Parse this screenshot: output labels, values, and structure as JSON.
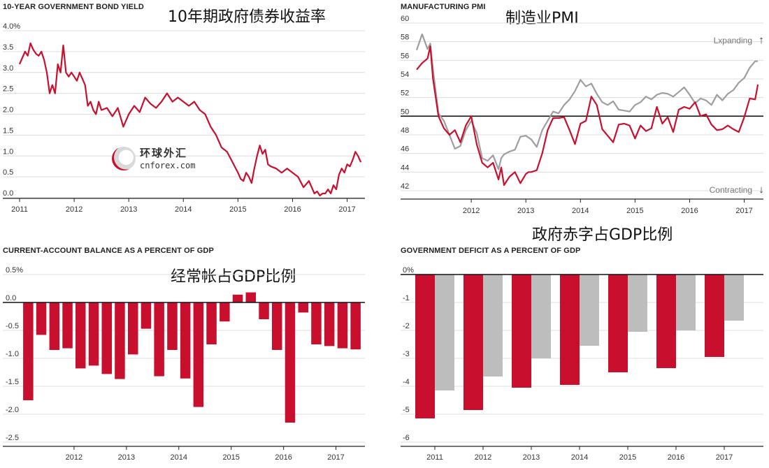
{
  "watermark": {
    "cn": "环球外汇",
    "en": "cnforex.com"
  },
  "chart_data": [
    {
      "type": "line",
      "title": "10-YEAR GOVERNMENT BOND YIELD",
      "title_cn": "10年期政府债券收益率",
      "y_tick_labels": [
        "4.0%",
        "3.5",
        "3.0",
        "2.5",
        "2.0",
        "1.5",
        "1.0",
        "0.5",
        "0.0"
      ],
      "x_tick_labels": [
        "2011",
        "2012",
        "2013",
        "2014",
        "2015",
        "2016",
        "2017"
      ],
      "ylim": [
        0,
        4
      ],
      "xlim": [
        2011.0,
        2017.3
      ],
      "grid": true,
      "series": [
        {
          "color": "#c8102e",
          "x": [
            2011.0,
            2011.05,
            2011.1,
            2011.15,
            2011.2,
            2011.25,
            2011.3,
            2011.35,
            2011.4,
            2011.45,
            2011.5,
            2011.55,
            2011.6,
            2011.65,
            2011.7,
            2011.75,
            2011.8,
            2011.85,
            2011.9,
            2011.95,
            2012.0,
            2012.05,
            2012.1,
            2012.15,
            2012.2,
            2012.25,
            2012.3,
            2012.35,
            2012.4,
            2012.45,
            2012.5,
            2012.6,
            2012.7,
            2012.8,
            2012.9,
            2013.0,
            2013.1,
            2013.2,
            2013.3,
            2013.4,
            2013.5,
            2013.6,
            2013.7,
            2013.8,
            2013.9,
            2014.0,
            2014.1,
            2014.2,
            2014.3,
            2014.4,
            2014.5,
            2014.6,
            2014.7,
            2014.8,
            2014.9,
            2015.0,
            2015.05,
            2015.1,
            2015.15,
            2015.2,
            2015.25,
            2015.3,
            2015.35,
            2015.4,
            2015.45,
            2015.5,
            2015.55,
            2015.6,
            2015.7,
            2015.8,
            2015.9,
            2016.0,
            2016.1,
            2016.2,
            2016.3,
            2016.4,
            2016.45,
            2016.5,
            2016.55,
            2016.6,
            2016.65,
            2016.7,
            2016.75,
            2016.8,
            2016.85,
            2016.9,
            2016.95,
            2017.0,
            2017.05,
            2017.1,
            2017.15,
            2017.2,
            2017.25
          ],
          "y": [
            3.2,
            3.35,
            3.5,
            3.4,
            3.7,
            3.55,
            3.45,
            3.4,
            3.5,
            3.3,
            3.0,
            2.5,
            2.7,
            2.5,
            3.2,
            3.0,
            3.65,
            3.0,
            2.9,
            3.0,
            2.9,
            2.8,
            3.0,
            2.85,
            2.7,
            2.2,
            2.3,
            2.1,
            2.0,
            2.3,
            2.1,
            2.15,
            1.95,
            2.15,
            1.7,
            2.0,
            2.2,
            2.05,
            2.4,
            2.25,
            2.15,
            2.3,
            2.5,
            2.3,
            2.4,
            2.3,
            2.2,
            2.3,
            2.1,
            2.0,
            1.7,
            1.5,
            1.2,
            1.1,
            0.85,
            0.6,
            0.45,
            0.4,
            0.6,
            0.5,
            0.35,
            0.7,
            1.0,
            1.25,
            1.05,
            1.15,
            0.8,
            0.75,
            0.7,
            0.6,
            0.7,
            0.6,
            0.5,
            0.25,
            0.4,
            0.1,
            0.15,
            0.05,
            0.1,
            0.1,
            0.2,
            0.1,
            0.3,
            0.2,
            0.55,
            0.7,
            0.6,
            0.8,
            0.75,
            0.9,
            1.1,
            1.0,
            0.85
          ]
        }
      ]
    },
    {
      "type": "line",
      "title": "MANUFACTURING PMI",
      "title_cn": "制造业PMI",
      "y_tick_labels": [
        "60",
        "58",
        "56",
        "54",
        "52",
        "50",
        "48",
        "46",
        "44",
        "42"
      ],
      "x_tick_labels": [
        "2012",
        "2013",
        "2014",
        "2015",
        "2016",
        "2017"
      ],
      "ylim": [
        42,
        60
      ],
      "xlim": [
        2011.0,
        2017.3
      ],
      "reference_line": 50,
      "annotations": [
        "Lxpanding",
        "Contracting"
      ],
      "series": [
        {
          "color": "#c8102e",
          "x": [
            2011.0,
            2011.1,
            2011.2,
            2011.25,
            2011.3,
            2011.4,
            2011.5,
            2011.6,
            2011.7,
            2011.8,
            2011.9,
            2012.0,
            2012.1,
            2012.2,
            2012.3,
            2012.4,
            2012.5,
            2012.55,
            2012.6,
            2012.7,
            2012.8,
            2012.9,
            2013.0,
            2013.05,
            2013.1,
            2013.2,
            2013.3,
            2013.4,
            2013.5,
            2013.6,
            2013.7,
            2013.8,
            2013.9,
            2014.0,
            2014.1,
            2014.2,
            2014.3,
            2014.4,
            2014.5,
            2014.6,
            2014.7,
            2014.8,
            2014.9,
            2015.0,
            2015.1,
            2015.2,
            2015.3,
            2015.4,
            2015.5,
            2015.6,
            2015.7,
            2015.8,
            2015.9,
            2016.0,
            2016.1,
            2016.2,
            2016.3,
            2016.4,
            2016.5,
            2016.6,
            2016.7,
            2016.8,
            2016.9,
            2017.0,
            2017.1,
            2017.2,
            2017.25
          ],
          "y": [
            55,
            55.7,
            56.2,
            57.5,
            54,
            50,
            48.7,
            48,
            48.5,
            47.2,
            49,
            50,
            47,
            45,
            44.5,
            45,
            43.2,
            44.5,
            42.6,
            43.5,
            44,
            42.8,
            43.8,
            44,
            44,
            44.2,
            46,
            48.5,
            49.8,
            49.8,
            49.9,
            48.5,
            47,
            49.2,
            49.5,
            52.1,
            51.2,
            48.6,
            47.9,
            47.2,
            49.1,
            49.2,
            49,
            47.6,
            49,
            48.4,
            48.7,
            51,
            49.2,
            49.9,
            48.3,
            50.7,
            51,
            50.8,
            51.5,
            50,
            50.2,
            49.1,
            48.5,
            48.6,
            49,
            48.6,
            48.3,
            49.9,
            51.9,
            51.8,
            53.4
          ]
        },
        {
          "color": "#9e9e9e",
          "x": [
            2011.0,
            2011.1,
            2011.2,
            2011.25,
            2011.3,
            2011.4,
            2011.5,
            2011.6,
            2011.7,
            2011.8,
            2011.9,
            2012.0,
            2012.1,
            2012.2,
            2012.3,
            2012.4,
            2012.5,
            2012.55,
            2012.6,
            2012.7,
            2012.8,
            2012.9,
            2013.0,
            2013.1,
            2013.2,
            2013.3,
            2013.4,
            2013.5,
            2013.6,
            2013.7,
            2013.8,
            2013.9,
            2014.0,
            2014.1,
            2014.2,
            2014.3,
            2014.4,
            2014.5,
            2014.6,
            2014.7,
            2014.8,
            2014.9,
            2015.0,
            2015.1,
            2015.2,
            2015.3,
            2015.4,
            2015.5,
            2015.6,
            2015.7,
            2015.8,
            2015.9,
            2016.0,
            2016.1,
            2016.2,
            2016.3,
            2016.4,
            2016.5,
            2016.6,
            2016.7,
            2016.8,
            2016.9,
            2017.0,
            2017.1,
            2017.2,
            2017.25
          ],
          "y": [
            57.1,
            58.8,
            57.2,
            57.8,
            55,
            50.3,
            49.5,
            48,
            46.5,
            46.8,
            48.5,
            49.5,
            48.2,
            45.5,
            45.2,
            45.8,
            44.3,
            45.5,
            45.9,
            46.2,
            46.4,
            47.8,
            47.9,
            47.5,
            46.7,
            48.5,
            49.5,
            50.5,
            50.3,
            51.2,
            51.8,
            52.7,
            53.9,
            53.2,
            53.5,
            52.4,
            51.5,
            51.2,
            51.6,
            50.7,
            50.6,
            50.5,
            51.2,
            51.5,
            52.1,
            51.8,
            52.3,
            52.5,
            52.4,
            52.1,
            52.6,
            53.1,
            52.3,
            51.4,
            51.9,
            51.7,
            51.2,
            52.3,
            51.7,
            52.4,
            52.8,
            53.6,
            54.1,
            55.2,
            55.9,
            55.9
          ]
        }
      ]
    },
    {
      "type": "bar",
      "title": "CURRENT-ACCOUNT BALANCE AS A PERCENT OF GDP",
      "title_cn": "经常帐占GDP比例",
      "y_tick_labels": [
        "0.5%",
        "0.0",
        "-0.5",
        "-1.0",
        "-1.5",
        "-2.0",
        "-2.5"
      ],
      "x_tick_labels": [
        "2012",
        "2013",
        "2014",
        "2015",
        "2016",
        "2017"
      ],
      "ylim": [
        -2.5,
        0.5
      ],
      "xlim": [
        2011.0,
        2017.5
      ],
      "series": [
        {
          "color": "#c8102e",
          "x": [
            2011.125,
            2011.375,
            2011.625,
            2011.875,
            2012.125,
            2012.375,
            2012.625,
            2012.875,
            2013.125,
            2013.375,
            2013.625,
            2013.875,
            2014.125,
            2014.375,
            2014.625,
            2014.875,
            2015.125,
            2015.375,
            2015.625,
            2015.875,
            2016.125,
            2016.375,
            2016.625,
            2016.875,
            2017.125,
            2017.375
          ],
          "values": [
            -1.75,
            -0.58,
            -0.85,
            -0.82,
            -1.18,
            -1.13,
            -1.28,
            -1.37,
            -0.93,
            -0.47,
            -1.32,
            -0.85,
            -1.36,
            -1.87,
            -0.75,
            -0.34,
            0.14,
            0.18,
            -0.3,
            -0.85,
            -2.15,
            -0.18,
            -0.75,
            -0.78,
            -0.82,
            -0.84
          ]
        }
      ]
    },
    {
      "type": "bar",
      "title": "GOVERNMENT DEFICIT AS A PERCENT OF GDP",
      "title_cn": "政府赤字占GDP比例",
      "y_tick_labels": [
        "0%",
        "-1",
        "-2",
        "-3",
        "-4",
        "-5",
        "-6"
      ],
      "categories": [
        "2011",
        "2012",
        "2013",
        "2014",
        "2015",
        "2016",
        "2017"
      ],
      "ylim": [
        -6,
        0
      ],
      "series": [
        {
          "color": "#c8102e",
          "values": [
            -5.15,
            -4.85,
            -4.05,
            -3.95,
            -3.5,
            -3.35,
            -2.95
          ]
        },
        {
          "color": "#bdbdbd",
          "values": [
            -4.15,
            -3.65,
            -3.0,
            -2.55,
            -2.05,
            -2.0,
            -1.65
          ]
        }
      ]
    }
  ]
}
